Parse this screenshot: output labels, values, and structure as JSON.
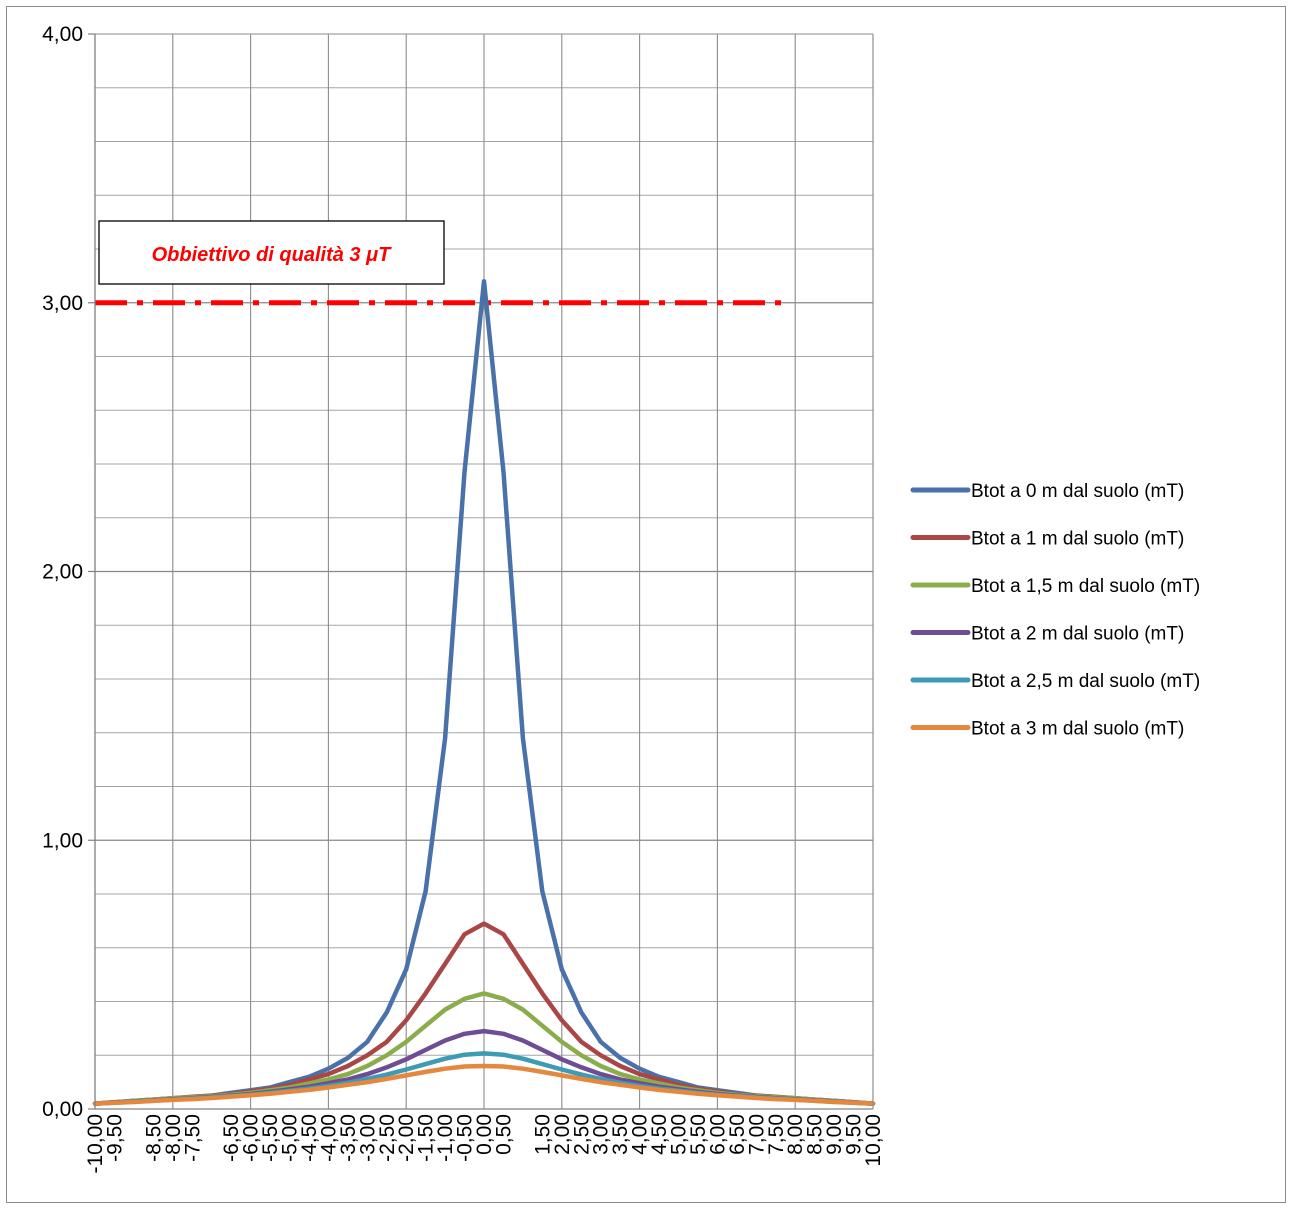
{
  "chart_data": {
    "type": "line",
    "x": [
      "-10,00",
      "-9,50",
      "-9,00",
      "-8,50",
      "-8,00",
      "-7,50",
      "-7,00",
      "-6,50",
      "-6,00",
      "-5,50",
      "-5,00",
      "-4,50",
      "-4,00",
      "-3,50",
      "-3,00",
      "-2,50",
      "-2,00",
      "-1,50",
      "-1,00",
      "-0,50",
      "0,00",
      "0,50",
      "1,00",
      "1,50",
      "2,00",
      "2,50",
      "3,00",
      "3,50",
      "4,00",
      "4,50",
      "5,00",
      "5,50",
      "6,00",
      "6,50",
      "7,00",
      "7,50",
      "8,00",
      "8,50",
      "9,00",
      "9,50",
      "10,00"
    ],
    "x_tick_labels": [
      "-10,00",
      "-9,50",
      "-8,50",
      "-8,00",
      "-7,50",
      "-6,50",
      "-6,00",
      "-5,50",
      "-5,00",
      "-4,50",
      "-4,00",
      "-3,50",
      "-3,00",
      "-2,50",
      "-2,00",
      "-1,50",
      "-1,00",
      "-0,50",
      "0,00",
      "0,50",
      "1,50",
      "2,00",
      "2,50",
      "3,00",
      "3,50",
      "4,00",
      "4,50",
      "5,00",
      "5,50",
      "6,00",
      "6,50",
      "7,00",
      "7,50",
      "8,00",
      "8,50",
      "9,00",
      "9,50",
      "10,00"
    ],
    "ylim": [
      0,
      4
    ],
    "y_ticks": [
      0,
      1,
      2,
      3,
      4
    ],
    "y_tick_labels": [
      "0,00",
      "1,00",
      "2,00",
      "3,00",
      "4,00"
    ],
    "y_minor_step": 0.2,
    "grid": true,
    "legend_position": "right",
    "series": [
      {
        "name": "Btot a 0 m dal suolo (mT)",
        "color": "#4a72aa",
        "values": [
          0.02,
          0.025,
          0.03,
          0.035,
          0.04,
          0.045,
          0.05,
          0.06,
          0.07,
          0.08,
          0.1,
          0.12,
          0.15,
          0.19,
          0.25,
          0.36,
          0.52,
          0.81,
          1.38,
          2.37,
          3.08,
          2.37,
          1.38,
          0.81,
          0.52,
          0.36,
          0.25,
          0.19,
          0.15,
          0.12,
          0.1,
          0.08,
          0.07,
          0.06,
          0.05,
          0.045,
          0.04,
          0.035,
          0.03,
          0.025,
          0.02
        ]
      },
      {
        "name": "Btot a 1 m dal suolo (mT)",
        "color": "#aa4645",
        "values": [
          0.02,
          0.025,
          0.03,
          0.035,
          0.04,
          0.045,
          0.05,
          0.055,
          0.065,
          0.075,
          0.09,
          0.11,
          0.13,
          0.16,
          0.2,
          0.25,
          0.33,
          0.43,
          0.54,
          0.65,
          0.69,
          0.65,
          0.54,
          0.43,
          0.33,
          0.25,
          0.2,
          0.16,
          0.13,
          0.11,
          0.09,
          0.075,
          0.065,
          0.055,
          0.05,
          0.045,
          0.04,
          0.035,
          0.03,
          0.025,
          0.02
        ]
      },
      {
        "name": "Btot a 1,5 m dal suolo (mT)",
        "color": "#8aac4a",
        "values": [
          0.02,
          0.025,
          0.03,
          0.035,
          0.04,
          0.043,
          0.048,
          0.053,
          0.06,
          0.07,
          0.08,
          0.095,
          0.11,
          0.13,
          0.16,
          0.2,
          0.25,
          0.31,
          0.37,
          0.41,
          0.43,
          0.41,
          0.37,
          0.31,
          0.25,
          0.2,
          0.16,
          0.13,
          0.11,
          0.095,
          0.08,
          0.07,
          0.06,
          0.053,
          0.048,
          0.043,
          0.04,
          0.035,
          0.03,
          0.025,
          0.02
        ]
      },
      {
        "name": "Btot a 2 m dal suolo (mT)",
        "color": "#6f4d94",
        "values": [
          0.02,
          0.024,
          0.028,
          0.032,
          0.036,
          0.04,
          0.045,
          0.05,
          0.056,
          0.064,
          0.073,
          0.083,
          0.096,
          0.11,
          0.13,
          0.155,
          0.185,
          0.22,
          0.255,
          0.28,
          0.29,
          0.28,
          0.255,
          0.22,
          0.185,
          0.155,
          0.13,
          0.11,
          0.096,
          0.083,
          0.073,
          0.064,
          0.056,
          0.05,
          0.045,
          0.04,
          0.036,
          0.032,
          0.028,
          0.024,
          0.02
        ]
      },
      {
        "name": "Btot a 2,5 m dal suolo (mT)",
        "color": "#3e9bb4",
        "values": [
          0.02,
          0.023,
          0.027,
          0.031,
          0.035,
          0.039,
          0.043,
          0.048,
          0.053,
          0.06,
          0.068,
          0.076,
          0.086,
          0.098,
          0.112,
          0.128,
          0.147,
          0.167,
          0.187,
          0.202,
          0.207,
          0.202,
          0.187,
          0.167,
          0.147,
          0.128,
          0.112,
          0.098,
          0.086,
          0.076,
          0.068,
          0.06,
          0.053,
          0.048,
          0.043,
          0.039,
          0.035,
          0.031,
          0.027,
          0.023,
          0.02
        ]
      },
      {
        "name": "Btot a 3 m dal suolo (mT)",
        "color": "#e6873e",
        "values": [
          0.02,
          0.023,
          0.026,
          0.03,
          0.034,
          0.037,
          0.041,
          0.046,
          0.051,
          0.057,
          0.064,
          0.071,
          0.08,
          0.09,
          0.1,
          0.112,
          0.125,
          0.138,
          0.15,
          0.158,
          0.16,
          0.158,
          0.15,
          0.138,
          0.125,
          0.112,
          0.1,
          0.09,
          0.08,
          0.071,
          0.064,
          0.057,
          0.051,
          0.046,
          0.041,
          0.037,
          0.034,
          0.03,
          0.026,
          0.023,
          0.02
        ]
      }
    ],
    "reference_line": {
      "y": 3.0,
      "color": "#ff0000",
      "x_end": 7.7
    },
    "annotation": {
      "text": "Obbiettivo di qualità 3 μT",
      "color": "#ff0000"
    }
  }
}
